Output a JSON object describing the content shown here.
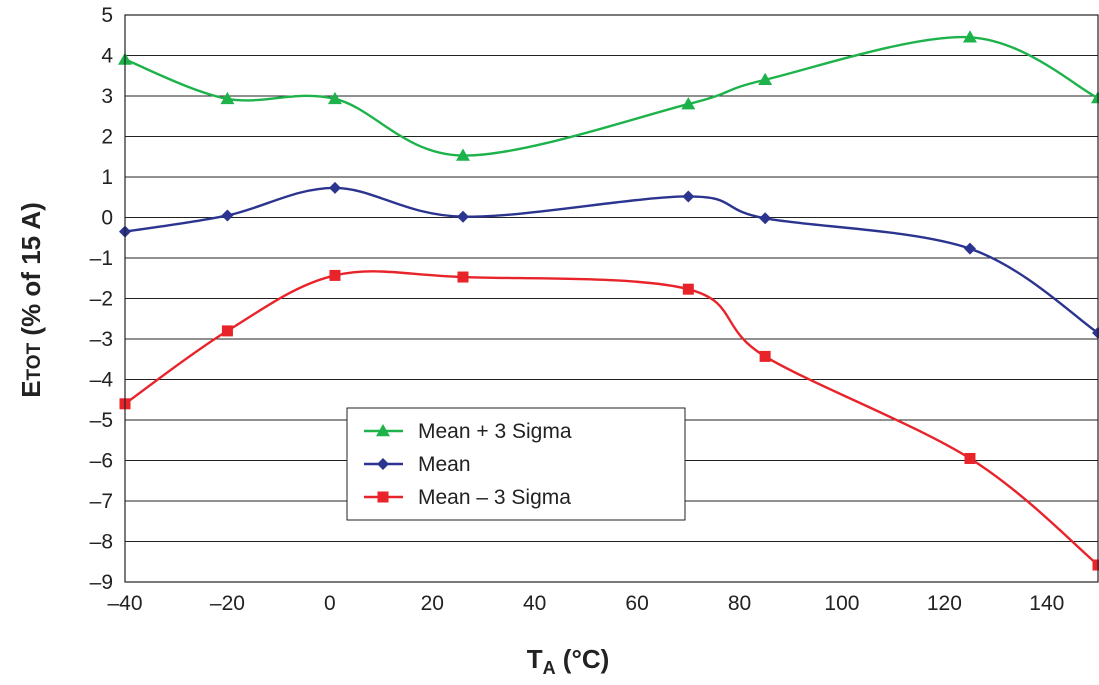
{
  "chart_data": {
    "type": "line",
    "xlabel": {
      "main": "T",
      "sub": "A",
      "unit": " (°C)"
    },
    "ylabel": {
      "main": "E",
      "sub": "TOT",
      "unit": " (% of 15 A)"
    },
    "xlim": [
      -40,
      150
    ],
    "ylim": [
      -9,
      5
    ],
    "xticks": [
      -40,
      -20,
      0,
      20,
      40,
      60,
      80,
      100,
      120,
      140
    ],
    "xtick_labels": [
      "–40",
      "–20",
      "0",
      "20",
      "40",
      "60",
      "80",
      "100",
      "120",
      "140"
    ],
    "yticks": [
      5,
      4,
      3,
      2,
      1,
      0,
      -1,
      -2,
      -3,
      -4,
      -5,
      -6,
      -7,
      -8,
      -9
    ],
    "ytick_labels": [
      "5",
      "4",
      "3",
      "2",
      "1",
      "0",
      "–1",
      "–2",
      "–3",
      "–4",
      "–5",
      "–6",
      "–7",
      "–8",
      "–9"
    ],
    "grid": "horizontal",
    "legend_position": "lower-center",
    "series": [
      {
        "name": "Mean + 3 Sigma",
        "color": "#1db34a",
        "marker": "triangle",
        "x": [
          -40,
          -20,
          1,
          26,
          70,
          85,
          125,
          150
        ],
        "y": [
          3.9,
          2.93,
          2.93,
          1.53,
          2.8,
          3.4,
          4.45,
          2.95
        ]
      },
      {
        "name": "Mean",
        "color": "#2b3590",
        "marker": "diamond",
        "x": [
          -40,
          -20,
          1,
          26,
          70,
          85,
          125,
          150
        ],
        "y": [
          -0.35,
          0.05,
          0.73,
          0.02,
          0.52,
          -0.02,
          -0.77,
          -2.85
        ]
      },
      {
        "name": "Mean – 3 Sigma",
        "color": "#e8232a",
        "marker": "square",
        "x": [
          -40,
          -20,
          1,
          26,
          70,
          85,
          125,
          150
        ],
        "y": [
          -4.6,
          -2.8,
          -1.43,
          -1.47,
          -1.77,
          -3.43,
          -5.95,
          -8.58
        ]
      }
    ]
  }
}
